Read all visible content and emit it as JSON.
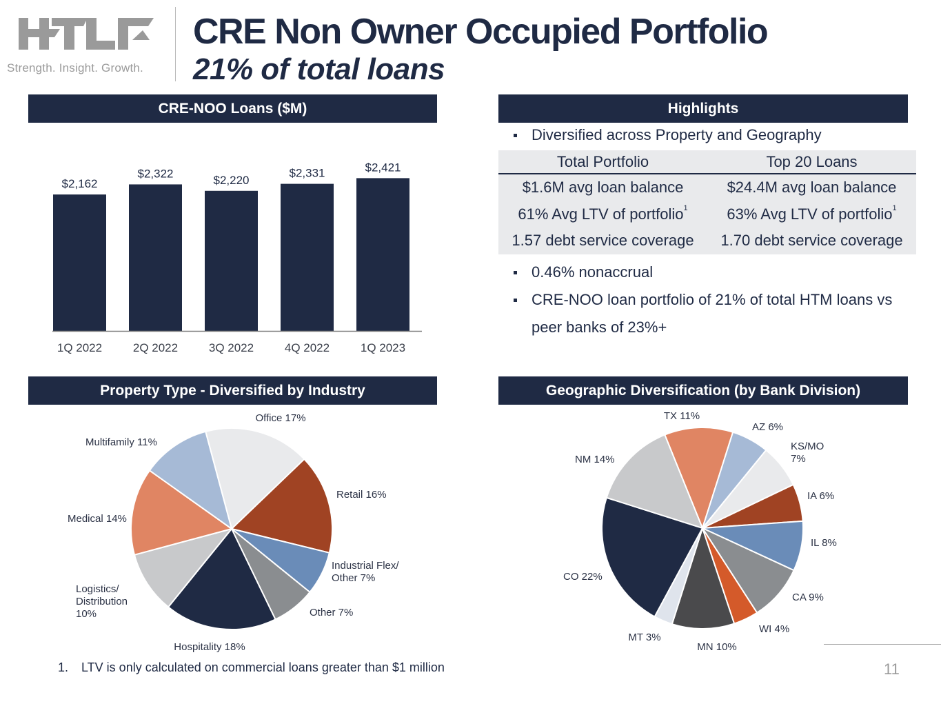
{
  "header": {
    "logo_text": "HTLF",
    "tagline": "Strength. Insight. Growth.",
    "title": "CRE Non Owner Occupied Portfolio",
    "subtitle": "21% of total loans"
  },
  "colors": {
    "navy": "#1f2a44",
    "light_gray_bg": "#e9eaec",
    "logo_gray": "#9a9a9a"
  },
  "loans_panel": {
    "header": "CRE-NOO Loans ($M)"
  },
  "highlights": {
    "header": "Highlights",
    "bullets_top": [
      "Diversified across Property and Geography"
    ],
    "table": {
      "columns": [
        "Total Portfolio",
        "Top 20 Loans"
      ],
      "rows": [
        [
          "$1.6M avg loan balance",
          "$24.4M avg loan balance"
        ],
        [
          "61% Avg LTV of portfolio",
          "63% Avg LTV of portfolio"
        ],
        [
          "1.57 debt service coverage",
          "1.70 debt service coverage"
        ]
      ],
      "ltv_footnote_marker": "1"
    },
    "bullets_bottom": [
      "0.46% nonaccrual",
      "CRE-NOO loan portfolio of 21% of total HTM loans vs",
      "peer banks of 23%+"
    ]
  },
  "property_panel": {
    "header": "Property Type - Diversified by Industry"
  },
  "geo_panel": {
    "header": "Geographic Diversification (by Bank Division)"
  },
  "footnote": {
    "number": "1.",
    "text": "LTV is only calculated on commercial loans greater than $1 million"
  },
  "page_number": "11",
  "chart_data": [
    {
      "type": "bar",
      "title": "CRE-NOO Loans ($M)",
      "categories": [
        "1Q 2022",
        "2Q 2022",
        "3Q 2022",
        "4Q 2022",
        "1Q 2023"
      ],
      "values": [
        2162,
        2322,
        2220,
        2331,
        2421
      ],
      "data_labels": [
        "$2,162",
        "$2,322",
        "$2,220",
        "$2,331",
        "$2,421"
      ],
      "xlabel": "",
      "ylabel": "",
      "ylim": [
        0,
        2600
      ],
      "grid": false,
      "color": "#1f2a44"
    },
    {
      "type": "pie",
      "title": "Property Type - Diversified by Industry",
      "start_angle_deg": -15,
      "direction": "clockwise",
      "slices": [
        {
          "label": [
            "Office 17%"
          ],
          "value": 17,
          "color": "#e9eaec"
        },
        {
          "label": [
            "Retail 16%"
          ],
          "value": 16,
          "color": "#a04323"
        },
        {
          "label": [
            "Industrial Flex/",
            "Other 7%"
          ],
          "value": 7,
          "color": "#6a8cb8"
        },
        {
          "label": [
            "Other 7%"
          ],
          "value": 7,
          "color": "#8a8d90"
        },
        {
          "label": [
            "Hospitality 18%"
          ],
          "value": 18,
          "color": "#1f2a44"
        },
        {
          "label": [
            "Logistics/",
            "Distribution",
            "10%"
          ],
          "value": 10,
          "color": "#c8c9cb"
        },
        {
          "label": [
            "Medical 14%"
          ],
          "value": 14,
          "color": "#e08563"
        },
        {
          "label": [
            "Multifamily 11%"
          ],
          "value": 11,
          "color": "#a6bad6"
        }
      ]
    },
    {
      "type": "pie",
      "title": "Geographic Diversification (by Bank Division)",
      "start_angle_deg": -22,
      "direction": "clockwise",
      "slices": [
        {
          "label": [
            "TX 11%"
          ],
          "value": 11,
          "color": "#e08563"
        },
        {
          "label": [
            "AZ 6%"
          ],
          "value": 6,
          "color": "#a6bad6"
        },
        {
          "label": [
            "KS/MO",
            "7%"
          ],
          "value": 7,
          "color": "#e9eaec"
        },
        {
          "label": [
            "IA 6%"
          ],
          "value": 6,
          "color": "#a04323"
        },
        {
          "label": [
            "IL 8%"
          ],
          "value": 8,
          "color": "#6a8cb8"
        },
        {
          "label": [
            "CA 9%"
          ],
          "value": 9,
          "color": "#8a8d90"
        },
        {
          "label": [
            "WI 4%"
          ],
          "value": 4,
          "color": "#d45a2a"
        },
        {
          "label": [
            "MN 10%"
          ],
          "value": 10,
          "color": "#4a4a4c"
        },
        {
          "label": [
            "MT 3%"
          ],
          "value": 3,
          "color": "#dfe4ec"
        },
        {
          "label": [
            "CO 22%"
          ],
          "value": 22,
          "color": "#1f2a44"
        },
        {
          "label": [
            "NM 14%"
          ],
          "value": 14,
          "color": "#c8c9cb"
        }
      ]
    }
  ]
}
